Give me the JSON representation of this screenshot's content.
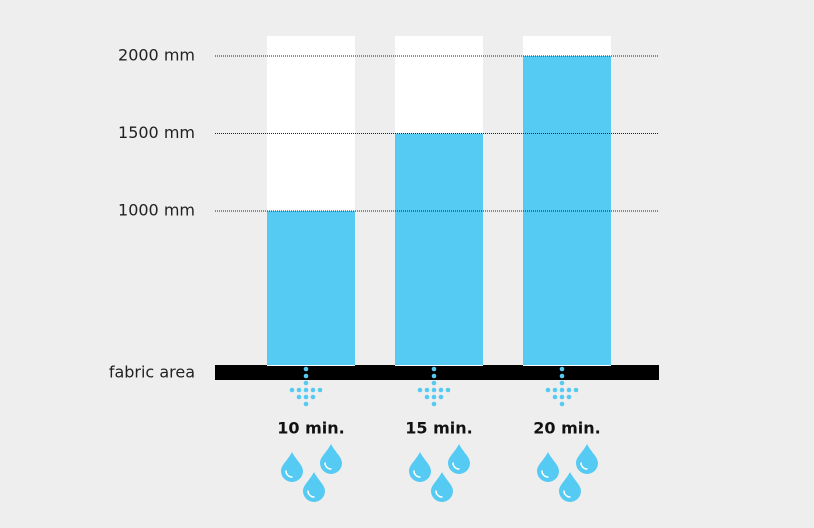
{
  "chart_data": {
    "type": "bar",
    "categories": [
      "10 min.",
      "15 min.",
      "20 min."
    ],
    "values": [
      1000,
      1500,
      2000
    ],
    "color": "#55caf2",
    "ylim": [
      0,
      2000
    ],
    "yticks": [
      {
        "value": 1000,
        "label": "1000 mm"
      },
      {
        "value": 1500,
        "label": "1500 mm"
      },
      {
        "value": 2000,
        "label": "2000 mm"
      }
    ],
    "grid": true,
    "baseline_label": "fabric area"
  }
}
